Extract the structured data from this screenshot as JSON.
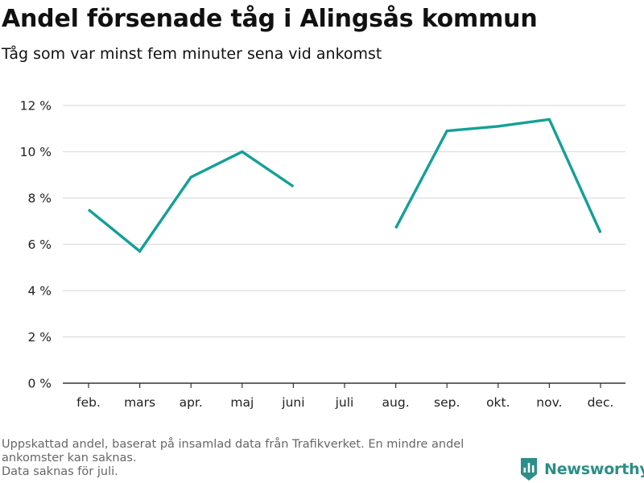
{
  "header": {
    "title": "Andel försenade tåg i Alingsås kommun",
    "subtitle": "Tåg som var minst fem minuter sena vid ankomst"
  },
  "chart_data": {
    "type": "line",
    "title": "Andel försenade tåg i Alingsås kommun",
    "subtitle": "Tåg som var minst fem minuter sena vid ankomst",
    "xlabel": "",
    "ylabel": "",
    "categories": [
      "feb.",
      "mars",
      "apr.",
      "maj",
      "juni",
      "juli",
      "aug.",
      "sep.",
      "okt.",
      "nov.",
      "dec."
    ],
    "series": [
      {
        "values": [
          7.5,
          5.7,
          8.9,
          10.0,
          8.5,
          null,
          6.7,
          10.9,
          11.1,
          11.4,
          6.5
        ],
        "color": "#13a098"
      }
    ],
    "ylim": [
      0,
      12
    ],
    "yticks": [
      0,
      2,
      4,
      6,
      8,
      10,
      12
    ],
    "ytick_labels": [
      "0 %",
      "2 %",
      "4 %",
      "6 %",
      "8 %",
      "10 %",
      "12 %"
    ],
    "grid": true,
    "gridline_color": "#dddddd",
    "baseline_color": "#333333",
    "legend": "none"
  },
  "footnote": {
    "line1": "Uppskattad andel, baserat på insamlad data från Trafikverket. En mindre andel",
    "line2": "ankomster kan saknas.",
    "line3": "Data saknas för juli."
  },
  "brand": {
    "name": "Newsworthy",
    "icon": "bar-chart-shield-icon",
    "color": "#2b8f87"
  }
}
